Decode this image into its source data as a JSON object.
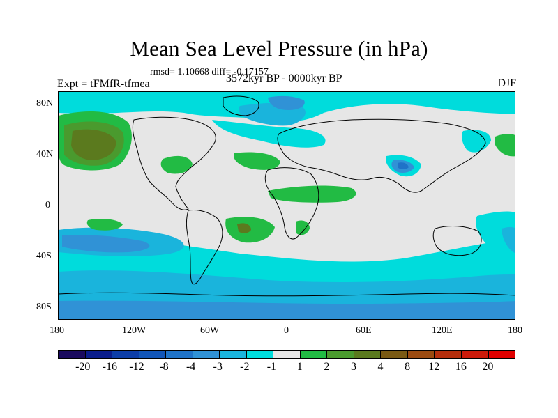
{
  "title": "Mean Sea Level Pressure (in hPa)",
  "stats": "rmsd= 1.10668 diff= -0.17157",
  "expt": "Expt = tFMfR-tfmea",
  "period": "3572kyr BP - 0000kyr BP",
  "season": "DJF",
  "lat_ticks": [
    "80N",
    "40N",
    "0",
    "40S",
    "80S"
  ],
  "lon_ticks": [
    "180",
    "120W",
    "60W",
    "0",
    "60E",
    "120E",
    "180"
  ],
  "colorbar": {
    "colors": [
      "#1a0a5e",
      "#0a1d8c",
      "#0d3ea8",
      "#1256b8",
      "#1f73c8",
      "#3092d6",
      "#1ab4dc",
      "#00dcdc",
      "#e6e6e6",
      "#22bb44",
      "#4a9a2e",
      "#5b7a1e",
      "#7a5a14",
      "#9a4a10",
      "#b52e0c",
      "#cc1a0a",
      "#e00000"
    ],
    "labels": [
      "-20",
      "-16",
      "-12",
      "-8",
      "-4",
      "-3",
      "-2",
      "-1",
      "1",
      "2",
      "3",
      "4",
      "8",
      "12",
      "16",
      "20"
    ]
  }
}
